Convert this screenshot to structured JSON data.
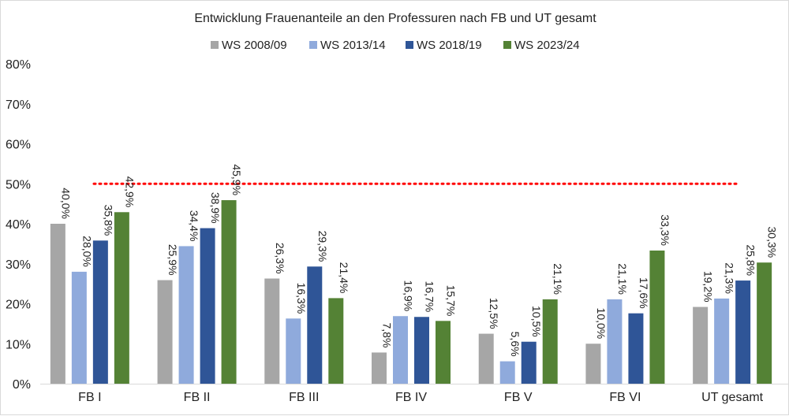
{
  "chart_data": {
    "type": "bar",
    "title": "Entwicklung Frauenanteile an den Professuren nach FB und UT gesamt",
    "categories": [
      "FB I",
      "FB II",
      "FB III",
      "FB IV",
      "FB V",
      "FB VI",
      "UT gesamt"
    ],
    "series": [
      {
        "name": "WS 2008/09",
        "color": "#a6a6a6",
        "values": [
          40.0,
          25.9,
          26.3,
          7.8,
          12.5,
          10.0,
          19.2
        ],
        "labels": [
          "40,0%",
          "25,9%",
          "26,3%",
          "7,8%",
          "12,5%",
          "10,0%",
          "19,2%"
        ]
      },
      {
        "name": "WS 2013/14",
        "color": "#8faadc",
        "values": [
          28.0,
          34.4,
          16.3,
          16.9,
          5.6,
          21.1,
          21.3
        ],
        "labels": [
          "28,0%",
          "34,4%",
          "16,3%",
          "16,9%",
          "5,6%",
          "21,1%",
          "21,3%"
        ]
      },
      {
        "name": "WS 2018/19",
        "color": "#2f5597",
        "values": [
          35.8,
          38.9,
          29.3,
          16.7,
          10.5,
          17.6,
          25.8
        ],
        "labels": [
          "35,8%",
          "38,9%",
          "29,3%",
          "16,7%",
          "10,5%",
          "17,6%",
          "25,8%"
        ]
      },
      {
        "name": "WS 2023/24",
        "color": "#548235",
        "values": [
          42.9,
          45.9,
          21.4,
          15.7,
          21.1,
          33.3,
          30.3
        ],
        "labels": [
          "42,9%",
          "45,9%",
          "21,4%",
          "15,7%",
          "21,1%",
          "33,3%",
          "30,3%"
        ]
      }
    ],
    "ylim": [
      0,
      80
    ],
    "yticks": [
      "0%",
      "10%",
      "20%",
      "30%",
      "40%",
      "50%",
      "60%",
      "70%",
      "80%"
    ],
    "reference_line": {
      "value": 50,
      "color": "#ff0000"
    },
    "legend_position": "top",
    "grid": false
  }
}
